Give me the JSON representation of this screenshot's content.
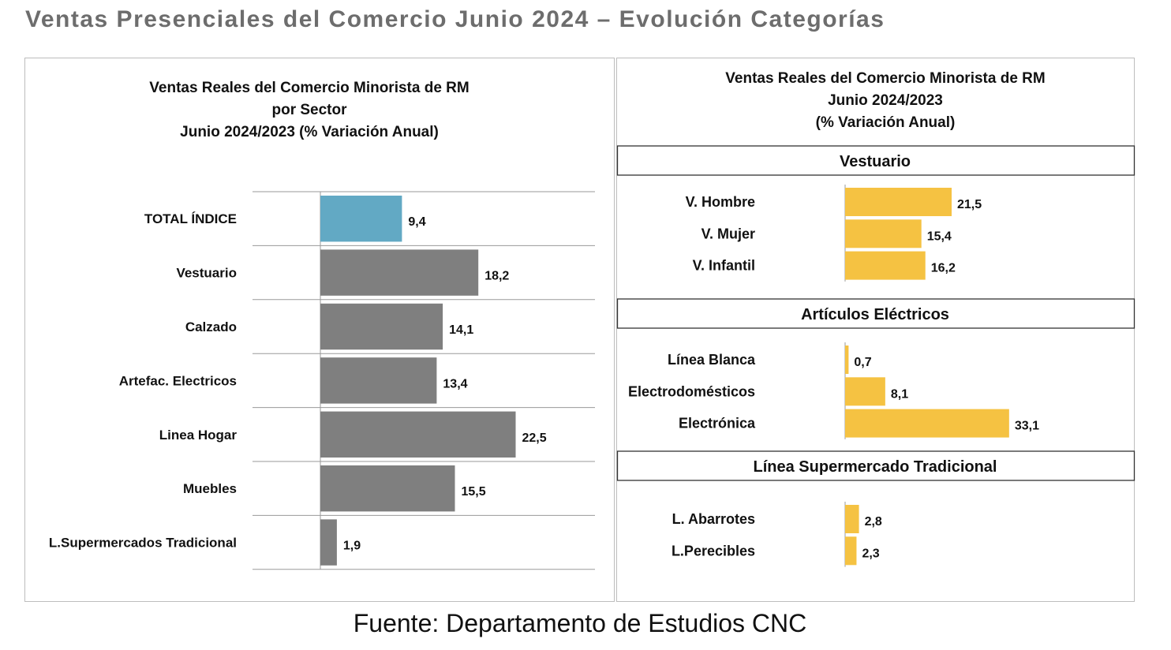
{
  "page_title": "Ventas Presenciales del Comercio Junio 2024 – Evolución Categorías",
  "source": "Fuente: Departamento de Estudios CNC",
  "colors": {
    "total": "#62a9c4",
    "sector": "#7f7f7f",
    "category": "#f5c242"
  },
  "chart_data": [
    {
      "type": "bar",
      "orientation": "horizontal",
      "title_lines": [
        "Ventas Reales del Comercio Minorista de RM",
        "por Sector",
        "Junio 2024/2023 (% Variación Anual)"
      ],
      "categories": [
        "TOTAL ÍNDICE",
        "Vestuario",
        "Calzado",
        "Artefac. Electricos",
        "Linea Hogar",
        "Muebles",
        "L.Supermercados Tradicional"
      ],
      "values": [
        9.4,
        18.2,
        14.1,
        13.4,
        22.5,
        15.5,
        1.9
      ],
      "value_labels": [
        "9,4",
        "18,2",
        "14,1",
        "13,4",
        "22,5",
        "15,5",
        "1,9"
      ],
      "highlight_index": 0,
      "xlim": [
        0,
        40
      ],
      "grid": true
    },
    {
      "type": "bar",
      "orientation": "horizontal",
      "title_lines": [
        "Ventas Reales del Comercio Minorista de RM",
        "Junio 2024/2023",
        "(% Variación Anual)"
      ],
      "groups": [
        {
          "name": "Vestuario",
          "categories": [
            "V. Hombre",
            "V. Mujer",
            "V. Infantil"
          ],
          "values": [
            21.5,
            15.4,
            16.2
          ],
          "value_labels": [
            "21,5",
            "15,4",
            "16,2"
          ]
        },
        {
          "name": "Artículos Eléctricos",
          "categories": [
            "Línea Blanca",
            "Electrodomésticos",
            "Electrónica"
          ],
          "values": [
            0.7,
            8.1,
            33.1
          ],
          "value_labels": [
            "0,7",
            "8,1",
            "33,1"
          ]
        },
        {
          "name": "Línea Supermercado Tradicional",
          "categories": [
            "L. Abarrotes",
            "L.Perecibles"
          ],
          "values": [
            2.8,
            2.3
          ],
          "value_labels": [
            "2,8",
            "2,3"
          ]
        }
      ],
      "xlim": [
        0,
        50
      ],
      "grid": false
    }
  ]
}
